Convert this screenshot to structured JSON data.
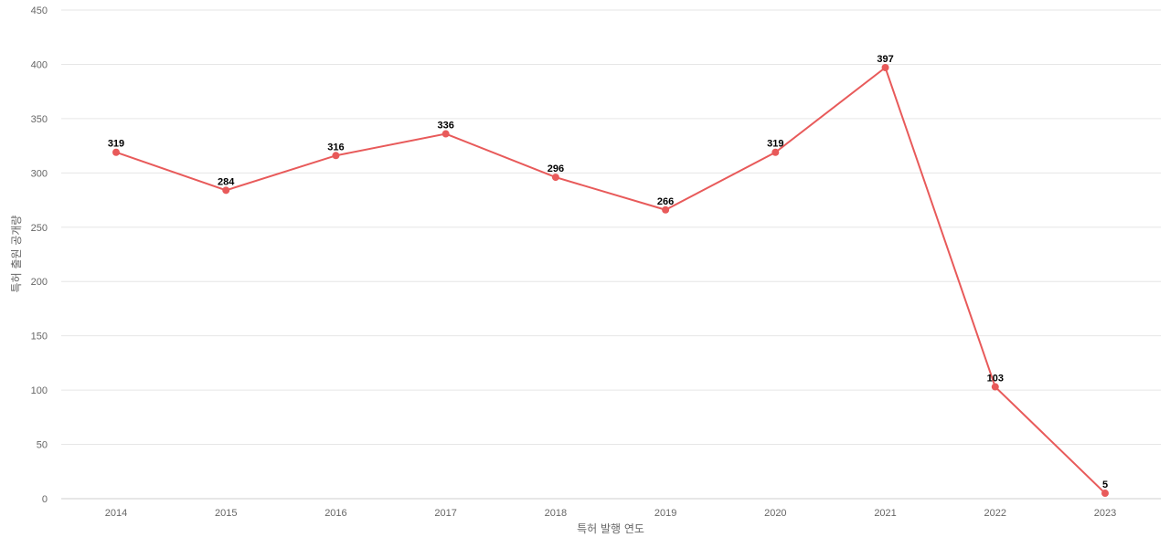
{
  "chart_data": {
    "type": "line",
    "title": "",
    "xlabel": "특허 발행 연도",
    "ylabel": "특허 출원 공개량",
    "categories": [
      "2014",
      "2015",
      "2016",
      "2017",
      "2018",
      "2019",
      "2020",
      "2021",
      "2022",
      "2023"
    ],
    "series": [
      {
        "values": [
          319,
          284,
          316,
          336,
          296,
          266,
          319,
          397,
          103,
          5
        ],
        "color": "#e85a5a"
      }
    ],
    "ylim": [
      0,
      450
    ],
    "yticks": [
      "0",
      "50",
      "100",
      "150",
      "200",
      "250",
      "300",
      "350",
      "400",
      "450"
    ],
    "grid": true,
    "show_data_labels": true
  }
}
